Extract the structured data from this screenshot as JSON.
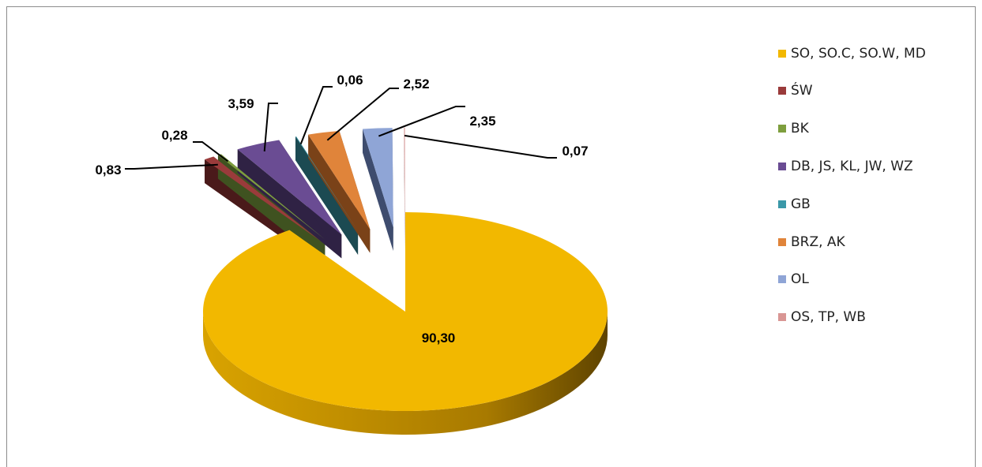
{
  "chart_data": {
    "type": "pie",
    "style": "3d-exploded",
    "slices": [
      {
        "label": "SO, SO.C, SO.W, MD",
        "value": 90.3,
        "display": "90,30",
        "color": "#F2B800",
        "dark": "#B98A00"
      },
      {
        "label": "ŚW",
        "value": 0.83,
        "display": "0,83",
        "color": "#9A3B3B",
        "dark": "#4A1A1A"
      },
      {
        "label": "BK",
        "value": 0.28,
        "display": "0,28",
        "color": "#7E9E3E",
        "dark": "#3F5220"
      },
      {
        "label": "DB, JS, KL, JW, WZ",
        "value": 3.59,
        "display": "3,59",
        "color": "#6A4C93",
        "dark": "#2F2244"
      },
      {
        "label": "GB",
        "value": 0.06,
        "display": "0,06",
        "color": "#3A98A8",
        "dark": "#1C4A52"
      },
      {
        "label": "BRZ, AK",
        "value": 2.52,
        "display": "2,52",
        "color": "#E0843A",
        "dark": "#7A4218"
      },
      {
        "label": "OL",
        "value": 2.35,
        "display": "2,35",
        "color": "#8FA5D6",
        "dark": "#3E4C6E"
      },
      {
        "label": "OS, TP, WB",
        "value": 0.07,
        "display": "0,07",
        "color": "#D99694",
        "dark": "#7A4A48"
      }
    ],
    "legend_position": "right"
  }
}
